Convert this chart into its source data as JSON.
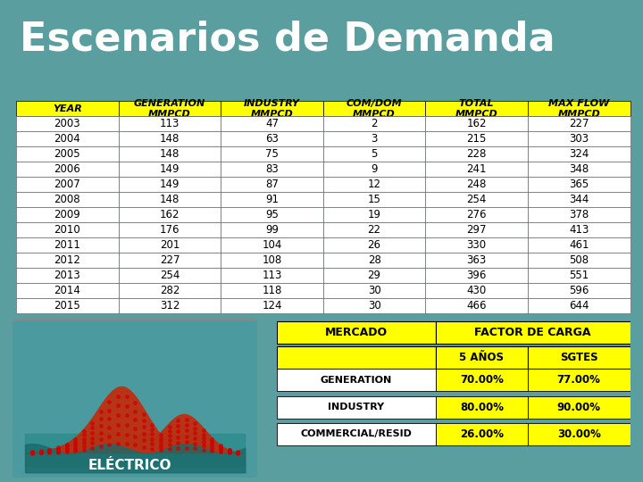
{
  "title": "Escenarios de Demanda",
  "bg_color": "#5b9ea6",
  "title_bg": "#4a4a6a",
  "title_color": "#ffffff",
  "table_header_color": "#ffff00",
  "table_header_text_color": "#000000",
  "table_row_color": "#ffffff",
  "table_alt_row_color": "#f0f0f0",
  "table_border_color": "#000000",
  "main_table_headers": [
    "YEAR",
    "GENERATION\nMMPCD",
    "INDUSTRY\nMMPCD",
    "COM/DOM\nMMPCD",
    "TOTAL\nMMPCD",
    "MAX FLOW\nMMPCD"
  ],
  "main_table_data": [
    [
      2003,
      113,
      47,
      2,
      162,
      227
    ],
    [
      2004,
      148,
      63,
      3,
      215,
      303
    ],
    [
      2005,
      148,
      75,
      5,
      228,
      324
    ],
    [
      2006,
      149,
      83,
      9,
      241,
      348
    ],
    [
      2007,
      149,
      87,
      12,
      248,
      365
    ],
    [
      2008,
      148,
      91,
      15,
      254,
      344
    ],
    [
      2009,
      162,
      95,
      19,
      276,
      378
    ],
    [
      2010,
      176,
      99,
      22,
      297,
      413
    ],
    [
      2011,
      201,
      104,
      26,
      330,
      461
    ],
    [
      2012,
      227,
      108,
      28,
      363,
      508
    ],
    [
      2013,
      254,
      113,
      29,
      396,
      551
    ],
    [
      2014,
      282,
      118,
      30,
      430,
      596
    ],
    [
      2015,
      312,
      124,
      30,
      466,
      644
    ]
  ],
  "factor_table_headers": [
    "MERCADO",
    "FACTOR DE CARGA",
    ""
  ],
  "factor_subheaders": [
    "",
    "5 AÑOS",
    "SGTES"
  ],
  "factor_table_data": [
    [
      "GENERATION",
      "70.00%",
      "77.00%"
    ],
    [
      "INDUSTRY",
      "80.00%",
      "90.00%"
    ],
    [
      "COMMERCIAL/RESID",
      "26.00%",
      "30.00%"
    ]
  ],
  "electrico_label": "ELÉCTRICO"
}
